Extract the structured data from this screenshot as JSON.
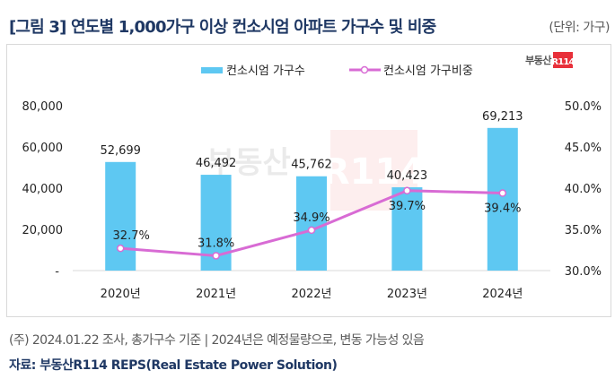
{
  "header": {
    "title": "[그림 3] 연도별 1,000가구 이상 컨소시엄 아파트 가구수 및 비중",
    "unit": "(단위: 가구)"
  },
  "logo": {
    "text": "부동산",
    "badge": "R114",
    "badge_color": "#e8303a"
  },
  "watermark": {
    "text": "부동산",
    "badge": "R114"
  },
  "footer": {
    "note": "(주) 2024.01.22 조사, 총가구수 기준 | 2024년은 예정물량으로, 변동 가능성 있음",
    "source": "자료: 부동산R114  REPS(Real Estate Power Solution)"
  },
  "chart_data": {
    "type": "bar",
    "title": "연도별 1,000가구 이상 컨소시엄 아파트 가구수 및 비중",
    "categories": [
      "2020년",
      "2021년",
      "2022년",
      "2023년",
      "2024년"
    ],
    "series": [
      {
        "name": "컨소시엄 가구수",
        "type": "bar",
        "axis": "left",
        "color": "#5ec8f2",
        "values": [
          52699,
          46492,
          45762,
          40423,
          69213
        ],
        "labels": [
          "52,699",
          "46,492",
          "45,762",
          "40,423",
          "69,213"
        ]
      },
      {
        "name": "컨소시엄 가구비중",
        "type": "line",
        "axis": "right",
        "color": "#d86bd4",
        "values": [
          32.7,
          31.8,
          34.9,
          39.7,
          39.4
        ],
        "labels": [
          "32.7%",
          "31.8%",
          "34.9%",
          "39.7%",
          "39.4%"
        ]
      }
    ],
    "y_left": {
      "range": [
        0,
        80000
      ],
      "ticks": [
        "-",
        "20,000",
        "40,000",
        "60,000",
        "80,000"
      ]
    },
    "y_right": {
      "range": [
        30,
        50
      ],
      "ticks": [
        "30.0%",
        "35.0%",
        "40.0%",
        "45.0%",
        "50.0%"
      ]
    },
    "legend": "top-center",
    "grid": false
  }
}
